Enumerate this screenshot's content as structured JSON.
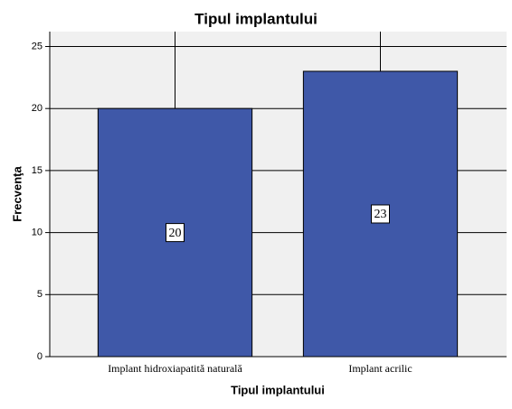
{
  "chart_data": {
    "type": "bar",
    "title": "Tipul implantului",
    "x_label": "Tipul implantului",
    "y_label": "Frecvenţa",
    "categories": [
      "Implant hidroxiapatită naturală",
      "Implant acrilic"
    ],
    "values": [
      20,
      23
    ],
    "color": "#3f58a8",
    "ylim": [
      0,
      26.2
    ],
    "yticks": [
      0,
      5,
      10,
      15,
      20,
      25
    ],
    "grid": true
  }
}
